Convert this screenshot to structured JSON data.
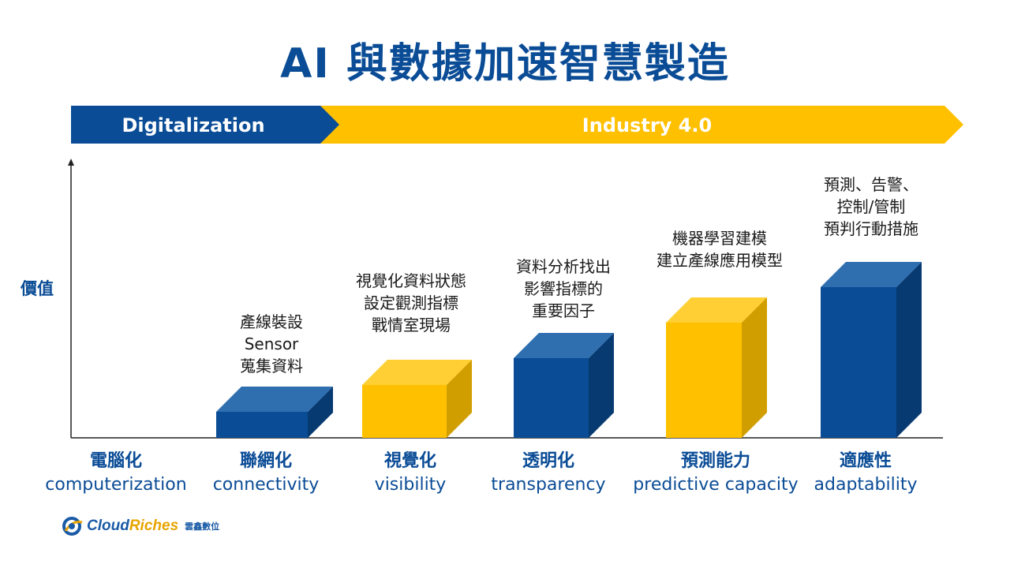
{
  "title": "AI 與數據加速智慧製造",
  "banner": {
    "digitalization": "Digitalization",
    "industry": "Industry 4.0"
  },
  "y_axis_label": "價值",
  "colors": {
    "blue": "#0a4c96",
    "yellow": "#ffc000",
    "title": "#0a4c96"
  },
  "stages": [
    {
      "zh": "電腦化",
      "en": "computerization",
      "annotation": [],
      "color": "none",
      "level": 0
    },
    {
      "zh": "聯網化",
      "en": "connectivity",
      "annotation": [
        "產線裝設",
        "Sensor",
        "蒐集資料"
      ],
      "color": "blue",
      "level": 1
    },
    {
      "zh": "視覺化",
      "en": "visibility",
      "annotation": [
        "視覺化資料狀態",
        "設定觀測指標",
        "戰情室現場"
      ],
      "color": "yellow",
      "level": 2
    },
    {
      "zh": "透明化",
      "en": "transparency",
      "annotation": [
        "資料分析找出",
        "影響指標的",
        "重要因子"
      ],
      "color": "blue",
      "level": 3
    },
    {
      "zh": "預測能力",
      "en": "predictive capacity",
      "annotation": [
        "機器學習建模",
        "建立產線應用模型"
      ],
      "color": "yellow",
      "level": 4
    },
    {
      "zh": "適應性",
      "en": "adaptability",
      "annotation": [
        "預測、告警、",
        "控制/管制",
        "預判行動措施"
      ],
      "color": "blue",
      "level": 5
    }
  ],
  "logo": {
    "name_part1": "Cloud",
    "name_part2": "Riches",
    "subtitle": "雲鑫數位"
  }
}
